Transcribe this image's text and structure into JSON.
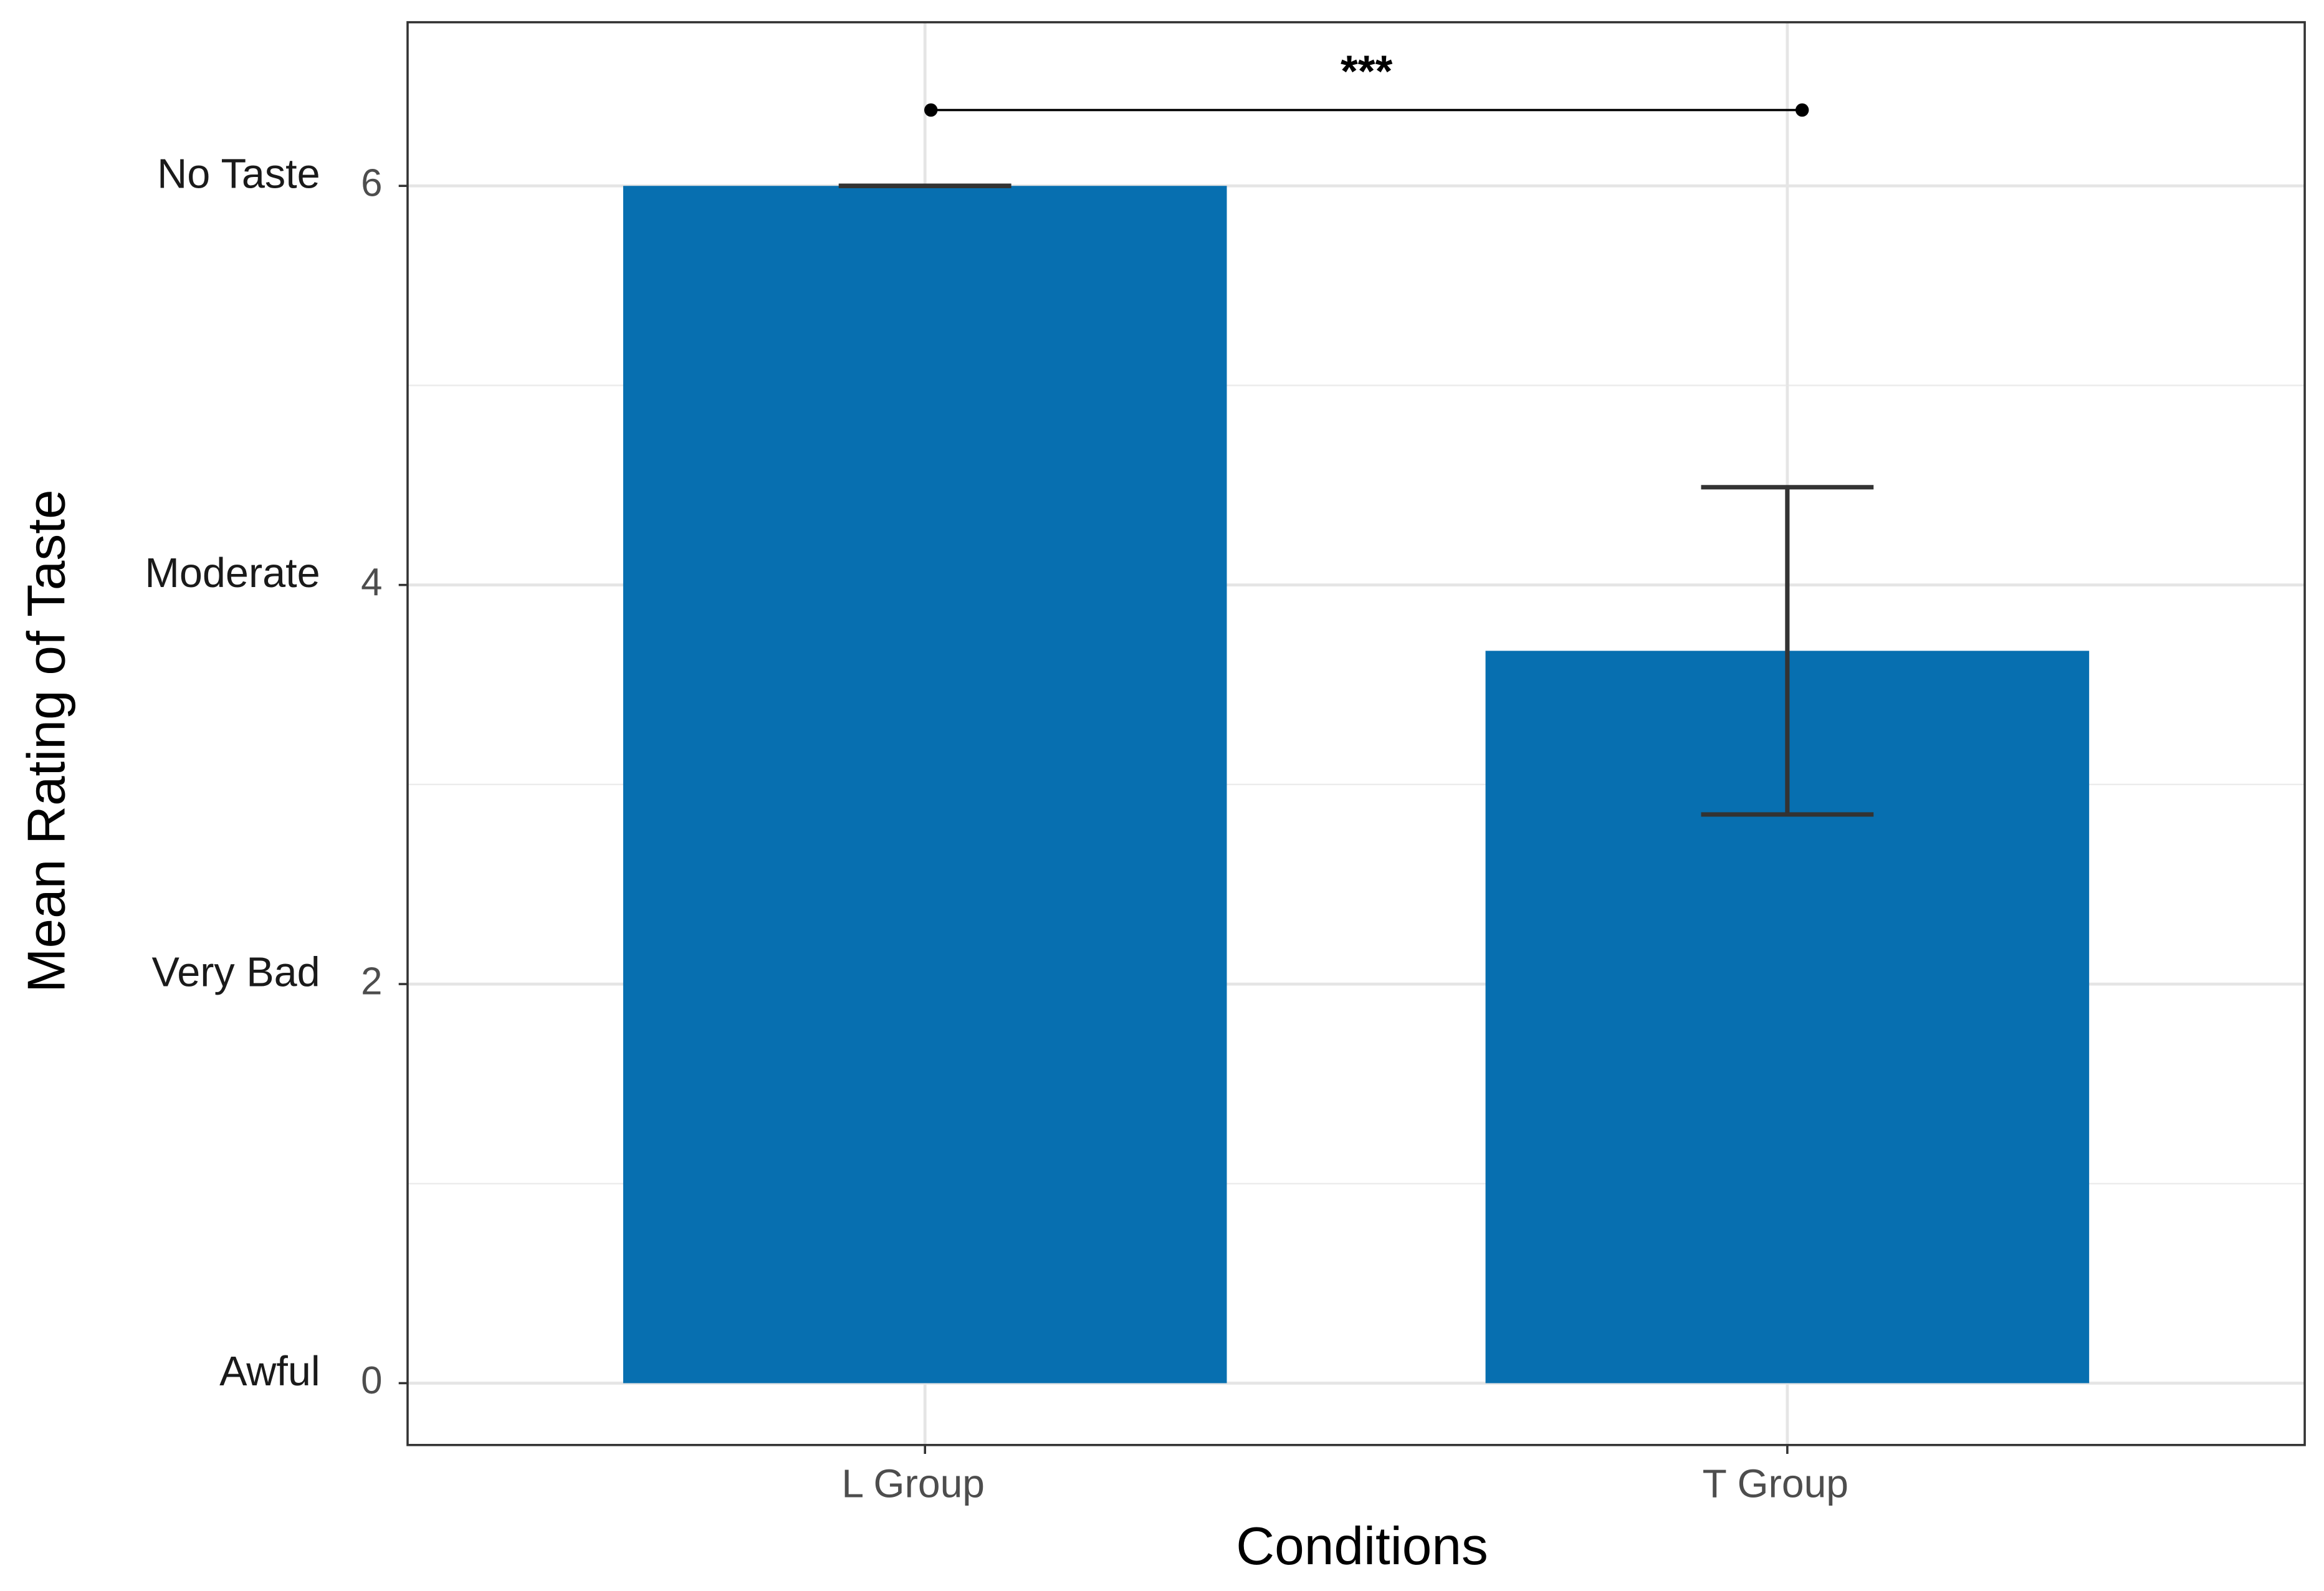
{
  "chart_data": {
    "type": "bar",
    "x_label": "Conditions",
    "y_label": "Mean Rating of Taste",
    "categories": [
      "L Group",
      "T Group"
    ],
    "values": [
      6,
      3.67
    ],
    "errors": [
      0,
      0.82
    ],
    "color": "#076fb0",
    "ylim": [
      -0.31,
      6.82
    ],
    "yticks": [
      0,
      2,
      4,
      6
    ],
    "minor_yticks": [
      1,
      3,
      5
    ],
    "ytick_descriptions": [
      "Awful",
      "Very Bad",
      "Moderate",
      "No Taste"
    ],
    "grid": true,
    "annotations": [
      {
        "text": "***",
        "y": 6.38
      }
    ]
  }
}
